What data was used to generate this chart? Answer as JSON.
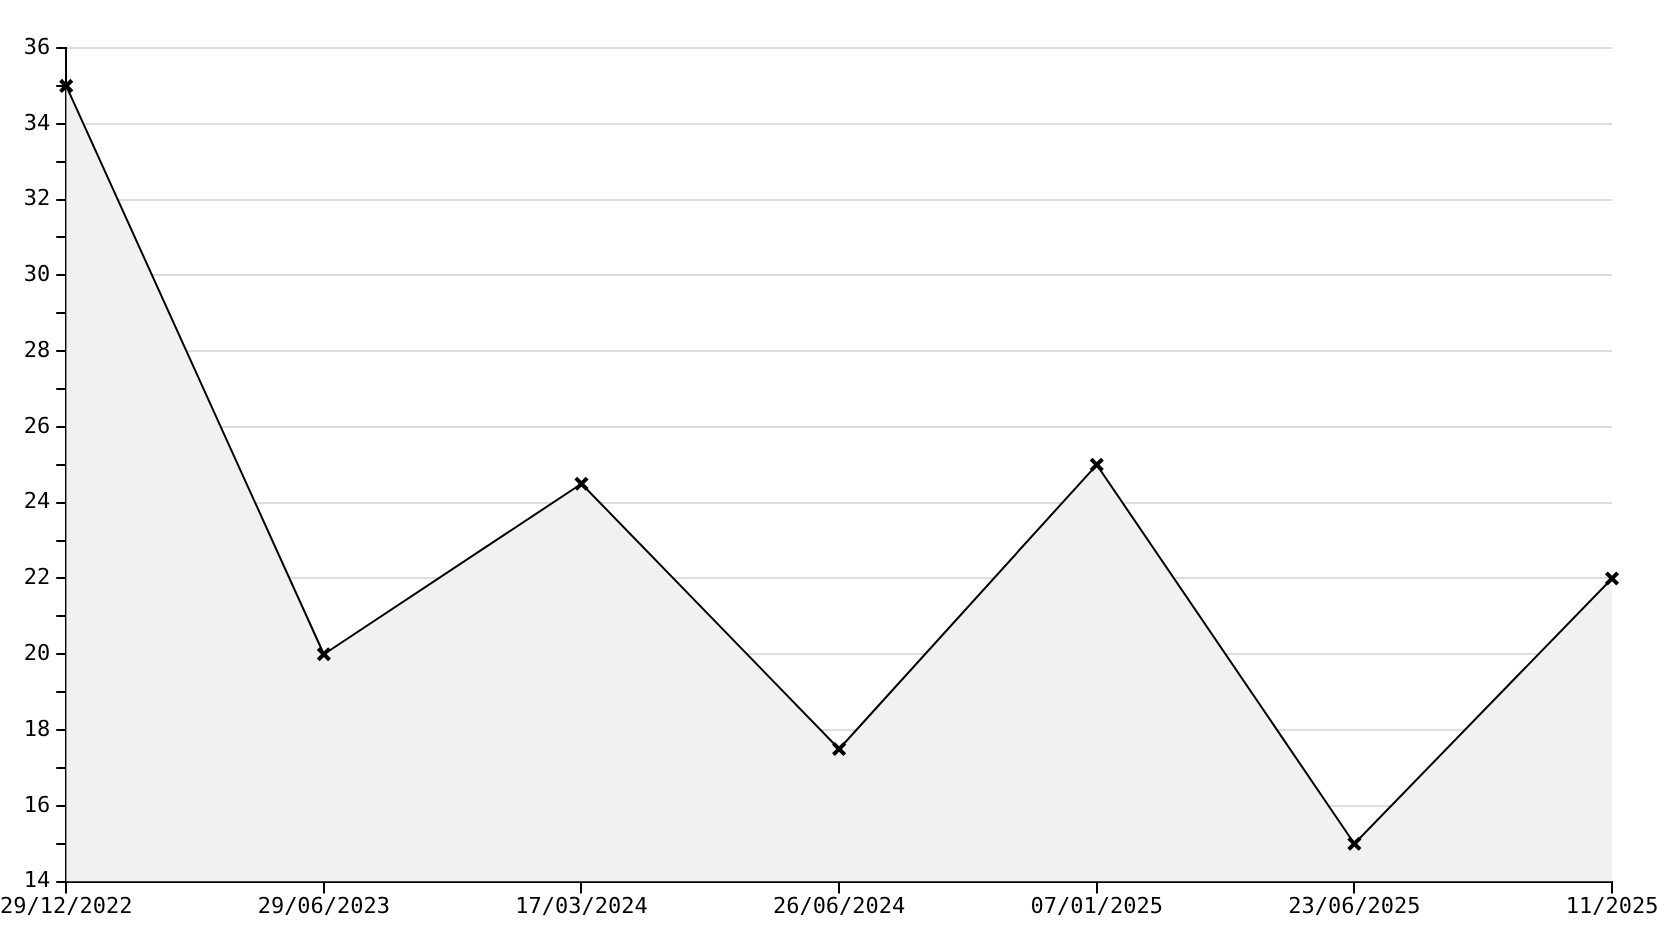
{
  "chart_data": {
    "type": "area",
    "categories": [
      "29/12/2022",
      "29/06/2023",
      "17/03/2024",
      "26/06/2024",
      "07/01/2025",
      "23/06/2025",
      "11/2025"
    ],
    "series": [
      {
        "color": "#000000",
        "values": [
          35,
          20,
          24.5,
          17.5,
          25,
          15,
          22
        ]
      }
    ],
    "ylim": [
      14,
      36
    ],
    "yticks": [
      14,
      {
        "value": 15,
        "label": null
      },
      16,
      {
        "value": 17,
        "label": null
      },
      18,
      {
        "value": 19,
        "label": null
      },
      20,
      {
        "value": 21,
        "label": null
      },
      22,
      {
        "value": 23,
        "label": null
      },
      24,
      {
        "value": 25,
        "label": null
      },
      26,
      {
        "value": 27,
        "label": null
      },
      28,
      {
        "value": 29,
        "label": null
      },
      30,
      {
        "value": 31,
        "label": null
      },
      32,
      {
        "value": 33,
        "label": null
      },
      34,
      {
        "value": 35,
        "label": null
      },
      36
    ],
    "grid": "y",
    "legend": false,
    "marker": "cross",
    "line_style": "solid"
  }
}
